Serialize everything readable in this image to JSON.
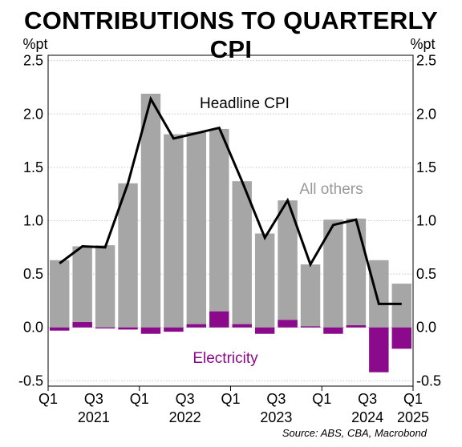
{
  "title": "CONTRIBUTIONS TO QUARTERLY CPI",
  "source": "Source: ABS, CBA, Macrobond",
  "colors": {
    "all_others": "#a6a6a6",
    "electricity": "#8b0a8b",
    "headline": "#000000",
    "grid": "#c8c8c8"
  },
  "chart_data": {
    "type": "bar",
    "stacked": true,
    "unit_left": "%pt",
    "unit_right": "%pt",
    "ylim": [
      -0.55,
      2.55
    ],
    "yticks": [
      -0.5,
      0.0,
      0.5,
      1.0,
      1.5,
      2.0,
      2.5
    ],
    "ytick_labels": [
      "-0.5",
      "0.0",
      "0.5",
      "1.0",
      "1.5",
      "2.0",
      "2.5"
    ],
    "grid": true,
    "categories": [
      "Q1 2021",
      "Q2 2021",
      "Q3 2021",
      "Q4 2021",
      "Q1 2022",
      "Q2 2022",
      "Q3 2022",
      "Q4 2022",
      "Q1 2023",
      "Q2 2023",
      "Q3 2023",
      "Q4 2023",
      "Q1 2024",
      "Q2 2024",
      "Q3 2024",
      "Q4 2024"
    ],
    "xtick_labels": [
      "Q1",
      "Q3",
      "Q1",
      "Q3",
      "Q1",
      "Q3",
      "Q1",
      "Q3",
      "Q1"
    ],
    "year_labels": [
      "2021",
      "2022",
      "2023",
      "2024",
      "2025"
    ],
    "series": [
      {
        "name": "All others",
        "kind": "bar",
        "values": [
          0.63,
          0.76,
          0.77,
          1.35,
          2.19,
          1.81,
          1.83,
          1.86,
          1.37,
          0.88,
          1.19,
          0.59,
          1.01,
          1.02,
          0.63,
          0.41
        ]
      },
      {
        "name": "Electricity",
        "kind": "bar",
        "values": [
          -0.03,
          0.05,
          -0.01,
          -0.02,
          -0.06,
          -0.04,
          0.03,
          0.15,
          0.03,
          -0.06,
          0.07,
          0.01,
          -0.06,
          0.02,
          -0.42,
          -0.2
        ]
      },
      {
        "name": "Headline CPI",
        "kind": "line",
        "values": [
          0.6,
          0.76,
          0.75,
          1.35,
          2.14,
          1.77,
          1.82,
          1.87,
          1.37,
          0.84,
          1.19,
          0.59,
          0.96,
          1.01,
          0.22,
          0.22
        ]
      }
    ]
  }
}
